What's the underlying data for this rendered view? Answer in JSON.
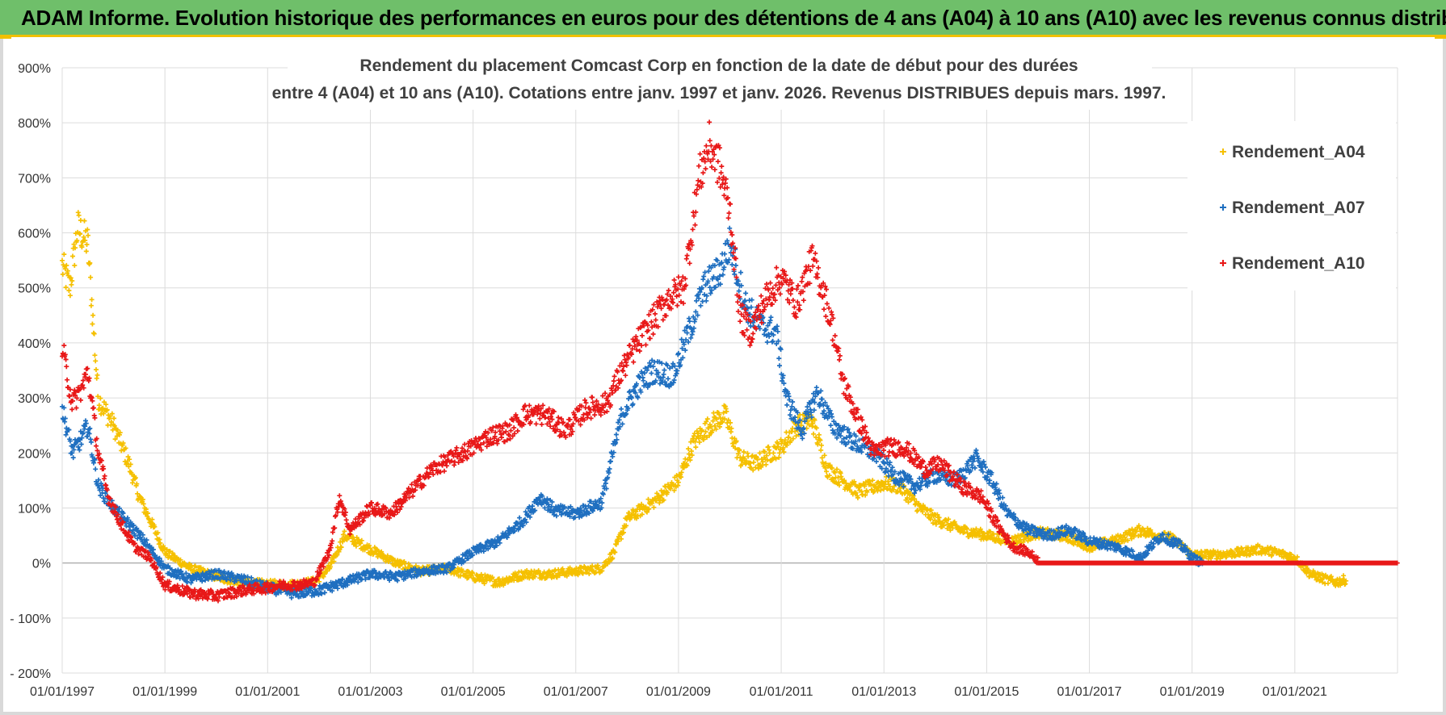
{
  "banner": {
    "title": "ADAM Informe. Evolution historique des performances en euros pour des détentions de 4 ans (A04) à 10 ans (A10) avec les revenus connus distribués"
  },
  "chart_data": {
    "type": "scatter",
    "title_line1": "Rendement du placement Comcast Corp en fonction de la date de début pour des durées",
    "title_line2": "entre 4 (A04) et 10 ans (A10).  Cotations entre janv. 1997 et janv. 2026. Revenus DISTRIBUES depuis mars. 1997.",
    "x_ticks": [
      "01/01/1997",
      "01/01/1999",
      "01/01/2001",
      "01/01/2003",
      "01/01/2005",
      "01/01/2007",
      "01/01/2009",
      "01/01/2011",
      "01/01/2013",
      "01/01/2015",
      "01/01/2017",
      "01/01/2019",
      "01/01/2021"
    ],
    "y_ticks": [
      "900%",
      "800%",
      "700%",
      "600%",
      "500%",
      "400%",
      "300%",
      "200%",
      "100%",
      "0%",
      "- 100%",
      "- 200%"
    ],
    "xlim": [
      1997.0,
      2023.0
    ],
    "ylim": [
      -200,
      900
    ],
    "legend_position": "right",
    "series": [
      {
        "name": "Rendement_A04",
        "color": "#f5c000",
        "x": [
          1997.0,
          1997.15,
          1997.3,
          1997.5,
          1997.7,
          1998.0,
          1998.3,
          1998.5,
          1998.75,
          1999.0,
          1999.5,
          2000.0,
          2000.5,
          2001.0,
          2001.5,
          2001.9,
          2002.2,
          2002.5,
          2002.9,
          2003.2,
          2003.5,
          2004.0,
          2004.5,
          2005.0,
          2005.5,
          2006.0,
          2006.5,
          2007.0,
          2007.5,
          2007.75,
          2008.0,
          2008.5,
          2009.0,
          2009.3,
          2009.6,
          2009.9,
          2010.2,
          2010.5,
          2010.8,
          2011.0,
          2011.3,
          2011.6,
          2011.9,
          2012.2,
          2012.5,
          2013.0,
          2013.3,
          2013.7,
          2014.0,
          2014.5,
          2015.0,
          2015.5,
          2016.0,
          2016.5,
          2017.0,
          2017.5,
          2018.0,
          2018.3,
          2018.6,
          2019.0,
          2019.5,
          2020.0,
          2020.3,
          2020.6,
          2021.0,
          2021.3,
          2021.6,
          2021.8,
          2022.0
        ],
        "y": [
          540,
          500,
          610,
          580,
          300,
          250,
          180,
          120,
          70,
          20,
          -10,
          -25,
          -35,
          -40,
          -40,
          -35,
          -10,
          50,
          30,
          15,
          0,
          -15,
          -10,
          -25,
          -35,
          -20,
          -20,
          -15,
          -10,
          20,
          80,
          110,
          150,
          220,
          250,
          270,
          190,
          180,
          200,
          210,
          250,
          260,
          170,
          150,
          130,
          145,
          140,
          100,
          80,
          60,
          50,
          40,
          55,
          50,
          30,
          40,
          60,
          50,
          45,
          15,
          15,
          20,
          25,
          20,
          10,
          -20,
          -30,
          -35,
          -30
        ]
      },
      {
        "name": "Rendement_A07",
        "color": "#1f6fc0",
        "x": [
          1997.0,
          1997.2,
          1997.4,
          1997.5,
          1997.7,
          1998.0,
          1998.3,
          1998.6,
          1999.0,
          1999.5,
          2000.0,
          2000.5,
          2001.0,
          2001.5,
          2002.0,
          2002.5,
          2003.0,
          2003.5,
          2004.0,
          2004.5,
          2005.0,
          2005.5,
          2006.0,
          2006.3,
          2006.6,
          2007.0,
          2007.5,
          2007.9,
          2008.2,
          2008.5,
          2008.9,
          2009.2,
          2009.5,
          2009.8,
          2010.0,
          2010.3,
          2010.6,
          2010.9,
          2011.1,
          2011.4,
          2011.7,
          2012.0,
          2012.4,
          2012.8,
          2013.2,
          2013.6,
          2014.0,
          2014.4,
          2014.8,
          2015.1,
          2015.4,
          2015.8,
          2016.2,
          2016.6,
          2017.0,
          2017.5,
          2018.0,
          2018.4,
          2018.8,
          2019.0,
          2019.2
        ],
        "y": [
          280,
          200,
          230,
          250,
          140,
          100,
          70,
          40,
          -10,
          -30,
          -20,
          -30,
          -45,
          -55,
          -50,
          -35,
          -20,
          -25,
          -15,
          -10,
          20,
          40,
          80,
          120,
          95,
          90,
          110,
          270,
          320,
          350,
          340,
          420,
          500,
          530,
          580,
          470,
          430,
          420,
          300,
          240,
          310,
          250,
          220,
          200,
          160,
          140,
          160,
          150,
          190,
          150,
          90,
          60,
          50,
          60,
          40,
          30,
          10,
          50,
          30,
          10,
          0
        ]
      },
      {
        "name": "Rendement_A10",
        "color": "#e81818",
        "x": [
          1997.0,
          1997.2,
          1997.4,
          1997.5,
          1997.7,
          1997.9,
          1998.1,
          1998.4,
          1998.7,
          1999.0,
          1999.5,
          2000.0,
          2000.5,
          2001.0,
          2001.3,
          2001.6,
          2001.9,
          2002.2,
          2002.4,
          2002.6,
          2003.0,
          2003.4,
          2003.8,
          2004.2,
          2004.6,
          2005.0,
          2005.3,
          2005.7,
          2006.0,
          2006.4,
          2006.8,
          2007.2,
          2007.6,
          2007.9,
          2008.2,
          2008.5,
          2008.8,
          2009.1,
          2009.4,
          2009.6,
          2009.8,
          2010.0,
          2010.2,
          2010.4,
          2010.7,
          2011.0,
          2011.3,
          2011.6,
          2011.8,
          2012.0,
          2012.2,
          2012.5,
          2012.8,
          2013.0,
          2013.4,
          2013.8,
          2014.1,
          2014.5,
          2014.9,
          2015.2,
          2015.5,
          2015.8,
          2016.0
        ],
        "y": [
          390,
          290,
          320,
          350,
          200,
          120,
          80,
          30,
          10,
          -40,
          -55,
          -60,
          -50,
          -45,
          -40,
          -40,
          -35,
          20,
          120,
          60,
          100,
          90,
          130,
          170,
          190,
          210,
          230,
          240,
          270,
          270,
          240,
          280,
          290,
          350,
          400,
          440,
          480,
          500,
          700,
          760,
          720,
          640,
          450,
          420,
          480,
          520,
          470,
          550,
          500,
          430,
          330,
          260,
          200,
          210,
          210,
          170,
          180,
          140,
          120,
          70,
          30,
          20,
          5
        ]
      }
    ]
  }
}
